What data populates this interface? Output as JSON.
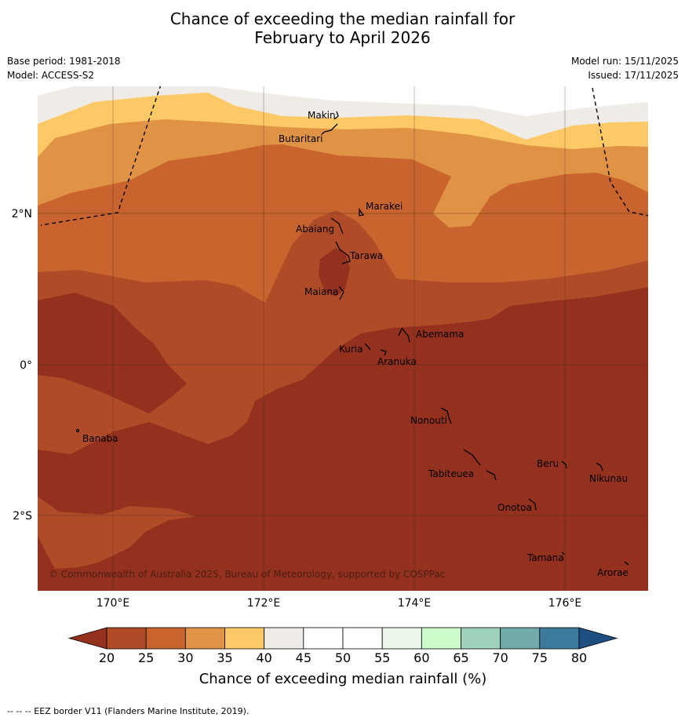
{
  "title_line1": "Chance of exceeding the median rainfall for",
  "title_line2": "February to April 2026",
  "base_period": "Base period: 1981-2018",
  "model": "Model: ACCESS-S2",
  "model_run": "Model run: 15/11/2025",
  "issued": "Issued: 17/11/2025",
  "copyright": "© Commonwealth of Australia 2025, Bureau of Meteorology, supported by COSPPac",
  "lat_labels": [
    "2°N",
    "0°",
    "2°S"
  ],
  "lon_labels": [
    "170°E",
    "172°E",
    "174°E",
    "176°E"
  ],
  "islands": [
    "Makin",
    "Butaritari",
    "Marakei",
    "Abaiang",
    "Tarawa",
    "Maiana",
    "Abemama",
    "Kuria",
    "Aranuka",
    "Nonouti",
    "Banaba",
    "Tabiteuea",
    "Beru",
    "Nikunau",
    "Onotoa",
    "Tamana",
    "Arorae"
  ],
  "colorbar": {
    "ticks": [
      "20",
      "25",
      "30",
      "35",
      "40",
      "45",
      "50",
      "55",
      "60",
      "65",
      "70",
      "75",
      "80"
    ],
    "label": "Chance of exceeding median rainfall (%)",
    "colors": [
      "#b04b28",
      "#c9642f",
      "#e09345",
      "#fcc966",
      "#efebe6",
      "#ffffff",
      "#ffffff",
      "#e9f6e9",
      "#ccfccb",
      "#9ed2bb",
      "#72aba9",
      "#3e7a9c"
    ],
    "under_color": "#93301e",
    "over_color": "#1e4f82"
  },
  "footnote": "-- -- -- EEZ border V11 (Flanders Marine Institute, 2019)."
}
